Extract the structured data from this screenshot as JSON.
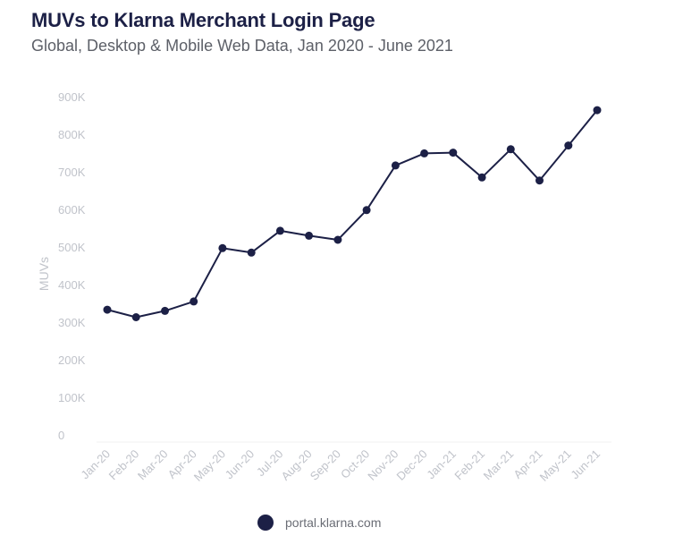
{
  "chart_data": {
    "type": "line",
    "title": "MUVs to Klarna Merchant Login Page",
    "subtitle": "Global, Desktop & Mobile Web Data, Jan 2020 - June 2021",
    "ylabel": "MUVs",
    "xlabel": "",
    "ylim": [
      0,
      900000
    ],
    "yticks": [
      0,
      100000,
      200000,
      300000,
      400000,
      500000,
      600000,
      700000,
      800000,
      900000
    ],
    "ytick_labels": [
      "0",
      "100K",
      "200K",
      "300K",
      "400K",
      "500K",
      "600K",
      "700K",
      "800K",
      "900K"
    ],
    "categories": [
      "Jan-20",
      "Feb-20",
      "Mar-20",
      "Apr-20",
      "May-20",
      "Jun-20",
      "Jul-20",
      "Aug-20",
      "Sep-20",
      "Oct-20",
      "Nov-20",
      "Dec-20",
      "Jan-21",
      "Feb-21",
      "Mar-21",
      "Apr-21",
      "May-21",
      "Jun-21"
    ],
    "series": [
      {
        "name": "portal.klarna.com",
        "color": "#1c2046",
        "values": [
          333000,
          313000,
          330000,
          355000,
          497000,
          485000,
          543000,
          530000,
          519000,
          598000,
          717000,
          749000,
          751000,
          685000,
          760000,
          677000,
          770000,
          864000
        ]
      }
    ],
    "grid": false,
    "legend": "bottom-center"
  }
}
